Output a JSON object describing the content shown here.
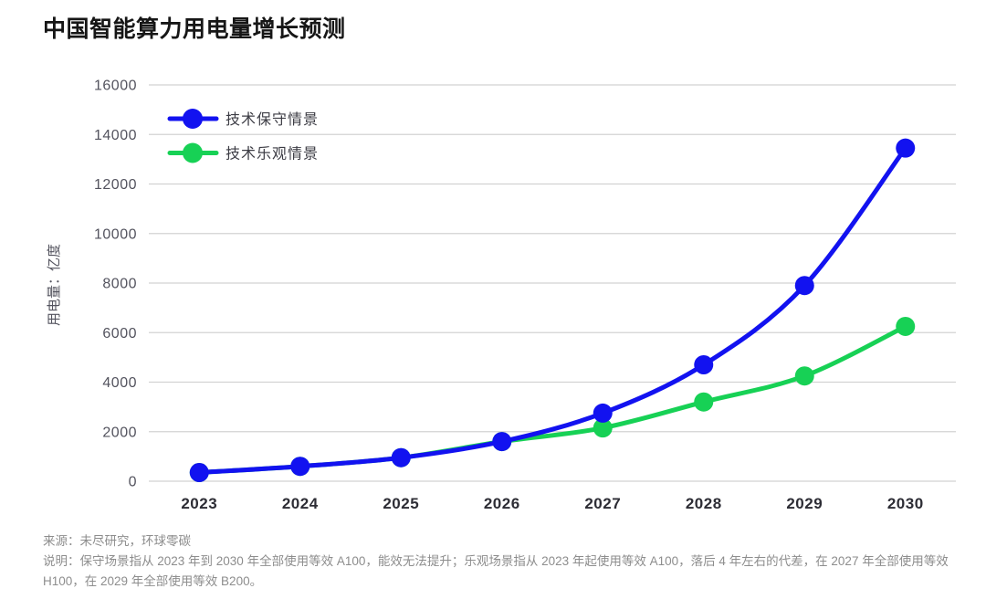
{
  "title": "中国智能算力用电量增长预测",
  "chart_data": {
    "type": "line",
    "title": "中国智能算力用电量增长预测",
    "categories": [
      "2023",
      "2024",
      "2025",
      "2026",
      "2027",
      "2028",
      "2029",
      "2030"
    ],
    "series": [
      {
        "name": "技术保守情景",
        "color": "#1212f0",
        "values": [
          350,
          600,
          950,
          1600,
          2750,
          4700,
          7900,
          13450
        ]
      },
      {
        "name": "技术乐观情景",
        "color": "#17d155",
        "values": [
          350,
          600,
          950,
          1600,
          2150,
          3200,
          4250,
          6250
        ]
      }
    ],
    "xlabel": "",
    "ylabel": "用电量：亿度",
    "ylim": [
      0,
      16000
    ],
    "ytick_step": 2000,
    "grid": "horizontal",
    "gridline_color": "#d2d2d2",
    "legend_position": "top-left-inside",
    "marker": "circle"
  },
  "footer": {
    "source": "来源：未尽研究，环球零碳",
    "note": "说明：保守场景指从 2023 年到 2030 年全部使用等效 A100，能效无法提升；乐观场景指从 2023 年起使用等效 A100，落后 4 年左右的代差，在 2027 年全部使用等效 H100，在 2029 年全部使用等效 B200。"
  }
}
